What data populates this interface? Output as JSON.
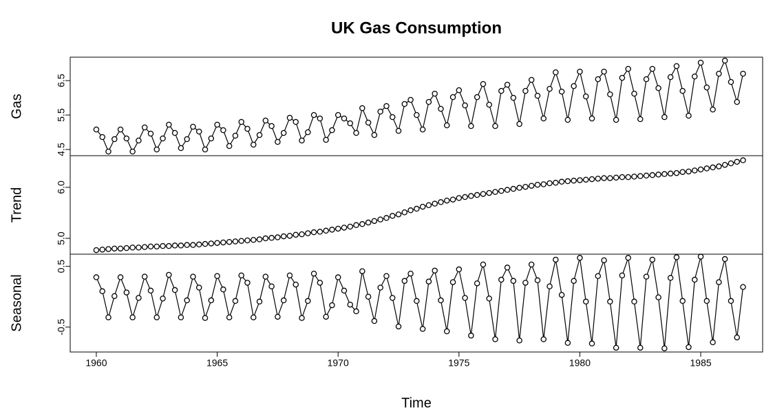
{
  "chart_data": {
    "type": "line",
    "title": "UK Gas Consumption",
    "xlabel": "Time",
    "xlim": [
      1958.92,
      1987.56
    ],
    "xticks": [
      1960,
      1965,
      1970,
      1975,
      1980,
      1985
    ],
    "x": [
      1960,
      1960.25,
      1960.5,
      1960.75,
      1961,
      1961.25,
      1961.5,
      1961.75,
      1962,
      1962.25,
      1962.5,
      1962.75,
      1963,
      1963.25,
      1963.5,
      1963.75,
      1964,
      1964.25,
      1964.5,
      1964.75,
      1965,
      1965.25,
      1965.5,
      1965.75,
      1966,
      1966.25,
      1966.5,
      1966.75,
      1967,
      1967.25,
      1967.5,
      1967.75,
      1968,
      1968.25,
      1968.5,
      1968.75,
      1969,
      1969.25,
      1969.5,
      1969.75,
      1970,
      1970.25,
      1970.5,
      1970.75,
      1971,
      1971.25,
      1971.5,
      1971.75,
      1972,
      1972.25,
      1972.5,
      1972.75,
      1973,
      1973.25,
      1973.5,
      1973.75,
      1974,
      1974.25,
      1974.5,
      1974.75,
      1975,
      1975.25,
      1975.5,
      1975.75,
      1976,
      1976.25,
      1976.5,
      1976.75,
      1977,
      1977.25,
      1977.5,
      1977.75,
      1978,
      1978.25,
      1978.5,
      1978.75,
      1979,
      1979.25,
      1979.5,
      1979.75,
      1980,
      1980.25,
      1980.5,
      1980.75,
      1981,
      1981.25,
      1981.5,
      1981.75,
      1982,
      1982.25,
      1982.5,
      1982.75,
      1983,
      1983.25,
      1983.5,
      1983.75,
      1984,
      1984.25,
      1984.5,
      1984.75,
      1985,
      1985.25,
      1985.5,
      1985.75,
      1986,
      1986.25,
      1986.5,
      1986.75
    ],
    "panels": [
      {
        "ylabel": "Gas",
        "ylim": [
          4.32,
          7.18
        ],
        "yticks": [
          4.5,
          5.5,
          6.5
        ],
        "values": [
          5.08,
          4.86,
          4.44,
          4.8,
          5.08,
          4.82,
          4.44,
          4.76,
          5.14,
          4.96,
          4.5,
          4.82,
          5.22,
          4.98,
          4.54,
          4.8,
          5.16,
          5.02,
          4.5,
          4.82,
          5.22,
          5.06,
          4.6,
          4.9,
          5.3,
          5.1,
          4.64,
          4.92,
          5.34,
          5.18,
          4.72,
          4.98,
          5.42,
          5.3,
          4.76,
          5.0,
          5.5,
          5.4,
          4.78,
          5.06,
          5.5,
          5.4,
          5.26,
          4.98,
          5.7,
          5.28,
          4.92,
          5.6,
          5.76,
          5.44,
          5.04,
          5.82,
          5.94,
          5.5,
          5.08,
          5.88,
          6.12,
          5.68,
          5.2,
          6.02,
          6.22,
          5.78,
          5.18,
          6.02,
          6.4,
          5.8,
          5.18,
          6.2,
          6.38,
          6.0,
          5.24,
          6.2,
          6.52,
          6.06,
          5.4,
          6.26,
          6.74,
          6.18,
          5.36,
          6.34,
          6.76,
          6.04,
          5.4,
          6.54,
          6.76,
          6.1,
          5.36,
          6.58,
          6.84,
          6.12,
          5.38,
          6.54,
          6.84,
          6.28,
          5.44,
          6.6,
          6.92,
          6.2,
          5.48,
          6.62,
          7.02,
          6.3,
          5.66,
          6.7,
          7.08,
          6.46,
          5.88,
          6.7
        ]
      },
      {
        "ylabel": "Trend",
        "ylim": [
          4.69,
          6.62
        ],
        "yticks": [
          {
            "value": 5,
            "label": "5.0"
          },
          {
            "value": 6,
            "label": "6.0"
          }
        ],
        "values": [
          4.77,
          4.78,
          4.79,
          4.8,
          4.8,
          4.81,
          4.82,
          4.82,
          4.83,
          4.84,
          4.84,
          4.85,
          4.85,
          4.86,
          4.86,
          4.87,
          4.87,
          4.88,
          4.89,
          4.9,
          4.91,
          4.92,
          4.93,
          4.94,
          4.95,
          4.96,
          4.97,
          4.98,
          5.0,
          5.01,
          5.02,
          5.04,
          5.05,
          5.07,
          5.08,
          5.1,
          5.12,
          5.13,
          5.15,
          5.17,
          5.19,
          5.21,
          5.23,
          5.26,
          5.28,
          5.31,
          5.34,
          5.37,
          5.4,
          5.44,
          5.47,
          5.51,
          5.55,
          5.58,
          5.62,
          5.65,
          5.68,
          5.71,
          5.74,
          5.76,
          5.79,
          5.81,
          5.83,
          5.85,
          5.87,
          5.89,
          5.91,
          5.93,
          5.95,
          5.97,
          5.99,
          6.01,
          6.03,
          6.05,
          6.06,
          6.08,
          6.09,
          6.11,
          6.12,
          6.13,
          6.14,
          6.15,
          6.16,
          6.17,
          6.18,
          6.18,
          6.19,
          6.2,
          6.2,
          6.21,
          6.22,
          6.23,
          6.24,
          6.25,
          6.26,
          6.27,
          6.28,
          6.3,
          6.31,
          6.33,
          6.35,
          6.37,
          6.39,
          6.41,
          6.44,
          6.47,
          6.5,
          6.53
        ]
      },
      {
        "ylabel": "Seasonal",
        "ylim": [
          -0.91,
          0.7
        ],
        "yticks": [
          -0.5,
          0.5
        ],
        "values": [
          0.32,
          0.09,
          -0.34,
          0.01,
          0.32,
          0.07,
          -0.34,
          -0.02,
          0.33,
          0.1,
          -0.34,
          -0.03,
          0.36,
          0.11,
          -0.34,
          -0.06,
          0.33,
          0.15,
          -0.35,
          -0.06,
          0.34,
          0.12,
          -0.34,
          -0.07,
          0.35,
          0.23,
          -0.34,
          -0.08,
          0.33,
          0.17,
          -0.33,
          -0.06,
          0.35,
          0.2,
          -0.35,
          -0.07,
          0.38,
          0.23,
          -0.33,
          -0.14,
          0.32,
          0.1,
          -0.13,
          -0.24,
          0.42,
          0.0,
          -0.4,
          0.15,
          0.34,
          -0.02,
          -0.49,
          0.26,
          0.38,
          -0.07,
          -0.53,
          0.25,
          0.43,
          -0.06,
          -0.57,
          0.24,
          0.45,
          -0.02,
          -0.64,
          0.22,
          0.53,
          -0.03,
          -0.7,
          0.28,
          0.48,
          0.26,
          -0.72,
          0.23,
          0.53,
          0.27,
          -0.7,
          0.17,
          0.61,
          0.03,
          -0.76,
          0.26,
          0.64,
          -0.08,
          -0.77,
          0.34,
          0.6,
          -0.08,
          -0.84,
          0.35,
          0.64,
          -0.08,
          -0.84,
          0.33,
          0.61,
          -0.01,
          -0.85,
          0.31,
          0.65,
          -0.07,
          -0.83,
          0.28,
          0.66,
          -0.07,
          -0.75,
          0.24,
          0.62,
          -0.07,
          -0.67,
          0.16
        ]
      }
    ]
  }
}
